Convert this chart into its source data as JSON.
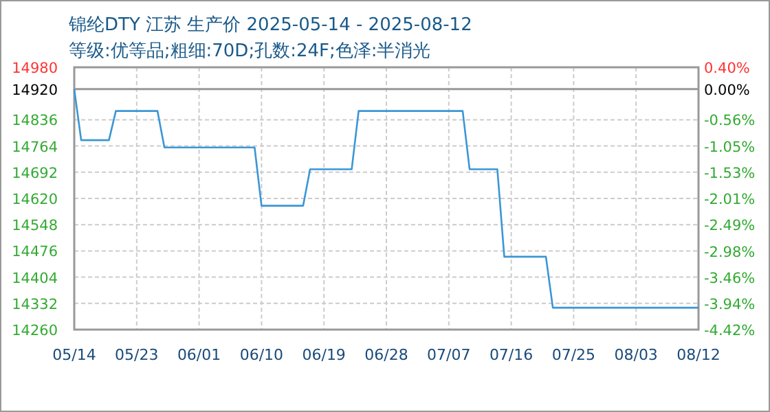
{
  "chart_data": {
    "type": "line",
    "title": "锦纶DTY 江苏 生产价 2025-05-14 - 2025-08-12",
    "subtitle": "等级:优等品;粗细:70D;孔数:24F;色泽:半消光",
    "x": [
      "2025-05-14",
      "2025-05-15",
      "2025-05-19",
      "2025-05-20",
      "2025-05-26",
      "2025-05-27",
      "2025-06-09",
      "2025-06-10",
      "2025-06-16",
      "2025-06-17",
      "2025-06-23",
      "2025-06-24",
      "2025-07-09",
      "2025-07-10",
      "2025-07-14",
      "2025-07-15",
      "2025-07-21",
      "2025-07-22",
      "2025-08-12"
    ],
    "series": [
      {
        "color": "#3a96d6",
        "values": [
          14920,
          14780,
          14780,
          14860,
          14860,
          14760,
          14760,
          14600,
          14600,
          14700,
          14700,
          14860,
          14860,
          14700,
          14700,
          14460,
          14460,
          14320,
          14320
        ]
      }
    ],
    "xlim": [
      "2025-05-14",
      "2025-08-12"
    ],
    "xticks": [
      {
        "value": "2025-05-14",
        "label": "05/14"
      },
      {
        "value": "2025-05-23",
        "label": "05/23"
      },
      {
        "value": "2025-06-01",
        "label": "06/01"
      },
      {
        "value": "2025-06-10",
        "label": "06/10"
      },
      {
        "value": "2025-06-19",
        "label": "06/19"
      },
      {
        "value": "2025-06-28",
        "label": "06/28"
      },
      {
        "value": "2025-07-07",
        "label": "07/07"
      },
      {
        "value": "2025-07-16",
        "label": "07/16"
      },
      {
        "value": "2025-07-25",
        "label": "07/25"
      },
      {
        "value": "2025-08-03",
        "label": "08/03"
      },
      {
        "value": "2025-08-12",
        "label": "08/12"
      }
    ],
    "ylim": [
      14260,
      14980
    ],
    "yticks": [
      14260,
      14332,
      14404,
      14476,
      14548,
      14620,
      14692,
      14764,
      14836,
      14920,
      14980
    ],
    "y2lim": [
      -4.42,
      0.4
    ],
    "y2ticks": [
      {
        "value": -4.42,
        "label": "-4.42%"
      },
      {
        "value": -3.94,
        "label": "-3.94%"
      },
      {
        "value": -3.46,
        "label": "-3.46%"
      },
      {
        "value": -2.98,
        "label": "-2.98%"
      },
      {
        "value": -2.49,
        "label": "-2.49%"
      },
      {
        "value": -2.01,
        "label": "-2.01%"
      },
      {
        "value": -1.53,
        "label": "-1.53%"
      },
      {
        "value": -1.05,
        "label": "-1.05%"
      },
      {
        "value": -0.56,
        "label": "-0.56%"
      },
      {
        "value": 0,
        "label": "0.00%"
      },
      {
        "value": 0.4,
        "label": "0.40%"
      }
    ],
    "ref_lines": [
      {
        "axis": "y",
        "value": 14920,
        "label": null,
        "color": "#999999"
      }
    ],
    "grid": true,
    "marker": "none",
    "line_style": "solid"
  }
}
